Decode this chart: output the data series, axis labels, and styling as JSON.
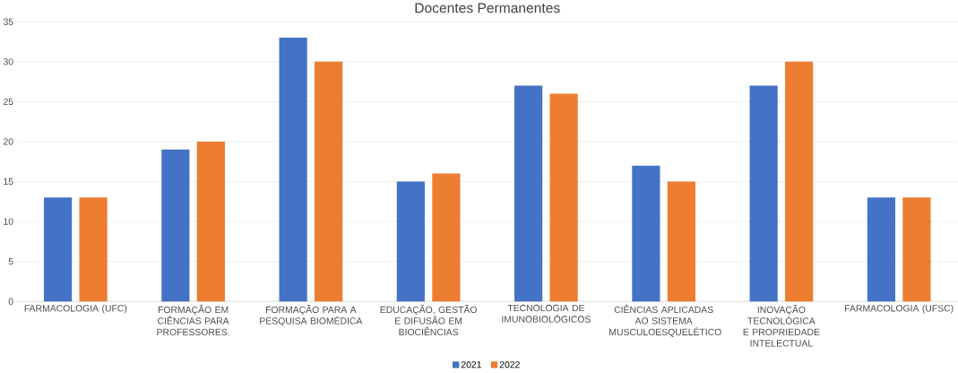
{
  "chart_data": {
    "type": "bar",
    "title": "Docentes Permanentes",
    "categories": [
      "FARMACOLOGIA (UFC)",
      "FORMAÇÃO EM CIÊNCIAS PARA PROFESSORES.",
      "FORMAÇÃO PARA A PESQUISA BIOMÉDICA",
      "EDUCAÇÃO, GESTÃO E DIFUSÃO EM BIOCIÊNCIAS",
      "TECNOLOGIA DE IMUNOBIOLÓGICOS",
      "CIÊNCIAS APLICADAS AO SISTEMA MUSCULOESQUELÉTICO",
      "INOVAÇÃO TECNOLÓGICA E PROPRIEDADE INTELECTUAL",
      "FARMACOLOGIA (UFSC)"
    ],
    "series": [
      {
        "name": "2021",
        "color": "#4472c4",
        "values": [
          13,
          19,
          33,
          15,
          27,
          17,
          27,
          13
        ]
      },
      {
        "name": "2022",
        "color": "#ed7d31",
        "values": [
          13,
          20,
          30,
          16,
          26,
          15,
          30,
          13
        ]
      }
    ],
    "ylim": [
      0,
      35
    ],
    "yticks": [
      0,
      5,
      10,
      15,
      20,
      25,
      30,
      35
    ],
    "grid": "y",
    "legend": "bottom"
  }
}
